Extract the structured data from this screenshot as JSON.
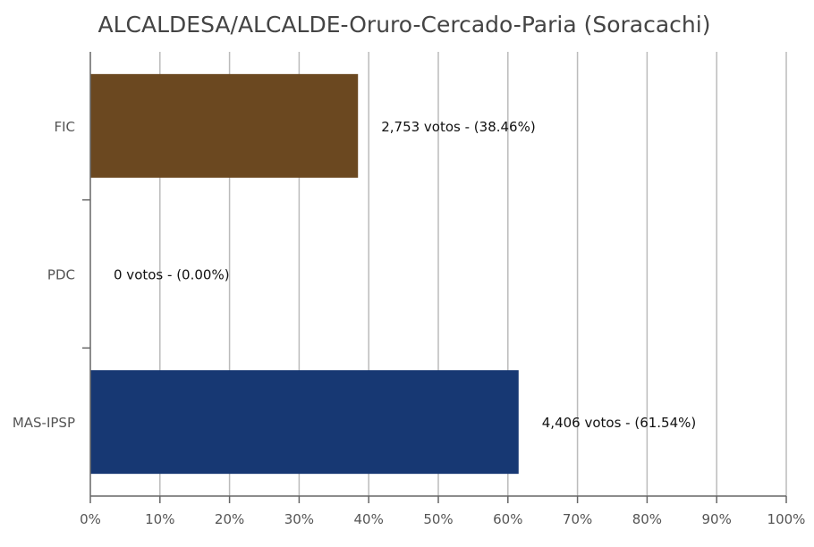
{
  "chart_data": {
    "type": "bar",
    "orientation": "horizontal",
    "title": "ALCALDESA/ALCALDE-Oruro-Cercado-Paria (Soracachi)",
    "categories": [
      "FIC",
      "PDC",
      "MAS-IPSP"
    ],
    "values": [
      38.46,
      0.0,
      61.54
    ],
    "votes": [
      2753,
      0,
      4406
    ],
    "data_labels": [
      "2,753 votos - (38.46%)",
      "0 votos - (0.00%)",
      "4,406 votos - (61.54%)"
    ],
    "colors": [
      "#6b4820",
      "#6b4820",
      "#173873"
    ],
    "xlim": [
      0,
      100
    ],
    "x_ticks": [
      "0%",
      "10%",
      "20%",
      "30%",
      "40%",
      "50%",
      "60%",
      "70%",
      "80%",
      "90%",
      "100%"
    ],
    "grid": true,
    "legend": "none"
  }
}
